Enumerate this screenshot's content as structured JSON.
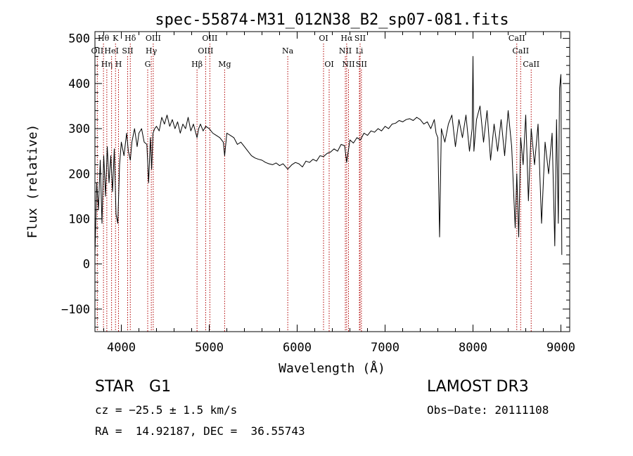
{
  "chart_data": {
    "type": "line",
    "title": "spec-55874-M31_012N38_B2_sp07-081.fits",
    "xlabel": "Wavelength (Å)",
    "ylabel": "Flux (relative)",
    "xlim": [
      3700,
      9100
    ],
    "ylim": [
      -150,
      515
    ],
    "x_ticks": [
      4000,
      5000,
      6000,
      7000,
      8000,
      9000
    ],
    "y_ticks": [
      -100,
      0,
      100,
      200,
      300,
      400,
      500
    ],
    "grid": false,
    "series": [
      {
        "name": "spectrum",
        "x": [
          3700,
          3720,
          3740,
          3760,
          3780,
          3800,
          3820,
          3840,
          3860,
          3880,
          3900,
          3920,
          3940,
          3960,
          3980,
          4000,
          4030,
          4060,
          4080,
          4102,
          4120,
          4150,
          4180,
          4200,
          4230,
          4260,
          4290,
          4310,
          4330,
          4345,
          4360,
          4380,
          4400,
          4430,
          4460,
          4490,
          4520,
          4550,
          4580,
          4610,
          4640,
          4670,
          4700,
          4730,
          4760,
          4790,
          4820,
          4861,
          4880,
          4900,
          4930,
          4960,
          5000,
          5040,
          5080,
          5120,
          5160,
          5175,
          5200,
          5240,
          5280,
          5320,
          5360,
          5400,
          5440,
          5480,
          5520,
          5560,
          5600,
          5640,
          5680,
          5720,
          5760,
          5800,
          5840,
          5893,
          5940,
          5980,
          6020,
          6060,
          6100,
          6140,
          6180,
          6220,
          6260,
          6300,
          6340,
          6380,
          6420,
          6460,
          6500,
          6540,
          6563,
          6600,
          6640,
          6680,
          6720,
          6760,
          6800,
          6840,
          6880,
          6920,
          6960,
          7000,
          7040,
          7080,
          7120,
          7160,
          7200,
          7240,
          7280,
          7320,
          7360,
          7400,
          7440,
          7480,
          7520,
          7560,
          7580,
          7600,
          7620,
          7640,
          7680,
          7720,
          7760,
          7800,
          7840,
          7880,
          7920,
          7960,
          7990,
          8000,
          8010,
          8040,
          8080,
          8120,
          8160,
          8200,
          8240,
          8280,
          8320,
          8360,
          8400,
          8440,
          8480,
          8498,
          8520,
          8542,
          8570,
          8600,
          8630,
          8662,
          8700,
          8740,
          8780,
          8820,
          8860,
          8900,
          8930,
          8950,
          8970,
          8985,
          9000,
          9010
        ],
        "values": [
          20,
          180,
          120,
          230,
          90,
          240,
          150,
          260,
          180,
          240,
          160,
          255,
          110,
          90,
          220,
          270,
          240,
          290,
          250,
          230,
          270,
          300,
          260,
          290,
          300,
          270,
          265,
          180,
          280,
          210,
          290,
          300,
          305,
          295,
          325,
          310,
          330,
          305,
          320,
          300,
          315,
          290,
          310,
          300,
          325,
          295,
          310,
          280,
          300,
          310,
          295,
          305,
          300,
          290,
          285,
          280,
          270,
          240,
          290,
          285,
          280,
          265,
          270,
          260,
          250,
          240,
          235,
          232,
          230,
          225,
          222,
          220,
          224,
          218,
          222,
          210,
          220,
          225,
          222,
          215,
          228,
          225,
          232,
          228,
          240,
          238,
          245,
          248,
          255,
          250,
          265,
          262,
          225,
          275,
          268,
          280,
          275,
          290,
          285,
          295,
          292,
          300,
          295,
          305,
          300,
          310,
          312,
          318,
          315,
          320,
          322,
          318,
          325,
          320,
          310,
          315,
          300,
          320,
          290,
          280,
          60,
          300,
          270,
          310,
          330,
          260,
          320,
          280,
          330,
          250,
          300,
          460,
          250,
          320,
          350,
          270,
          340,
          230,
          310,
          250,
          320,
          240,
          340,
          260,
          80,
          200,
          60,
          280,
          220,
          330,
          140,
          300,
          220,
          310,
          90,
          270,
          200,
          290,
          40,
          320,
          90,
          390,
          420,
          20
        ]
      }
    ],
    "spectral_lines": [
      {
        "wavelength": 3727,
        "label": "OII",
        "row": 2
      },
      {
        "wavelength": 3797,
        "label": "Hθ",
        "row": 1
      },
      {
        "wavelength": 3835,
        "label": "Hη",
        "row": 3
      },
      {
        "wavelength": 3889,
        "label": "HeI",
        "row": 2
      },
      {
        "wavelength": 3934,
        "label": "K",
        "row": 1
      },
      {
        "wavelength": 3968,
        "label": "H",
        "row": 3
      },
      {
        "wavelength": 4072,
        "label": "SII",
        "row": 2
      },
      {
        "wavelength": 4102,
        "label": "Hδ",
        "row": 1
      },
      {
        "wavelength": 4300,
        "label": "G",
        "row": 3
      },
      {
        "wavelength": 4341,
        "label": "Hγ",
        "row": 2
      },
      {
        "wavelength": 4363,
        "label": "OIII",
        "row": 1
      },
      {
        "wavelength": 4861,
        "label": "Hβ",
        "row": 3
      },
      {
        "wavelength": 4959,
        "label": "OIII",
        "row": 2
      },
      {
        "wavelength": 5007,
        "label": "OIII",
        "row": 1
      },
      {
        "wavelength": 5175,
        "label": "Mg",
        "row": 3
      },
      {
        "wavelength": 5893,
        "label": "Na",
        "row": 2
      },
      {
        "wavelength": 6300,
        "label": "OI",
        "row": 1
      },
      {
        "wavelength": 6364,
        "label": "OI",
        "row": 3
      },
      {
        "wavelength": 6548,
        "label": "NII",
        "row": 2
      },
      {
        "wavelength": 6563,
        "label": "Hα",
        "row": 1
      },
      {
        "wavelength": 6584,
        "label": "NII",
        "row": 3
      },
      {
        "wavelength": 6708,
        "label": "Li",
        "row": 2
      },
      {
        "wavelength": 6716,
        "label": "SII",
        "row": 1
      },
      {
        "wavelength": 6731,
        "label": "SII",
        "row": 3
      },
      {
        "wavelength": 8498,
        "label": "CaII",
        "row": 1
      },
      {
        "wavelength": 8542,
        "label": "CaII",
        "row": 2
      },
      {
        "wavelength": 8662,
        "label": "CaII",
        "row": 3
      }
    ],
    "colors": {
      "spectrum": "#000000",
      "lines": "#b00000",
      "axes": "#000000"
    }
  },
  "info": {
    "class": "STAR",
    "subclass": "G1",
    "survey": "LAMOST DR3",
    "cz": "cz = −25.5 ± 1.5 km/s",
    "obs_date": "Obs−Date: 20111108",
    "ra_dec": "RA =  14.92187, DEC =  36.55743"
  }
}
